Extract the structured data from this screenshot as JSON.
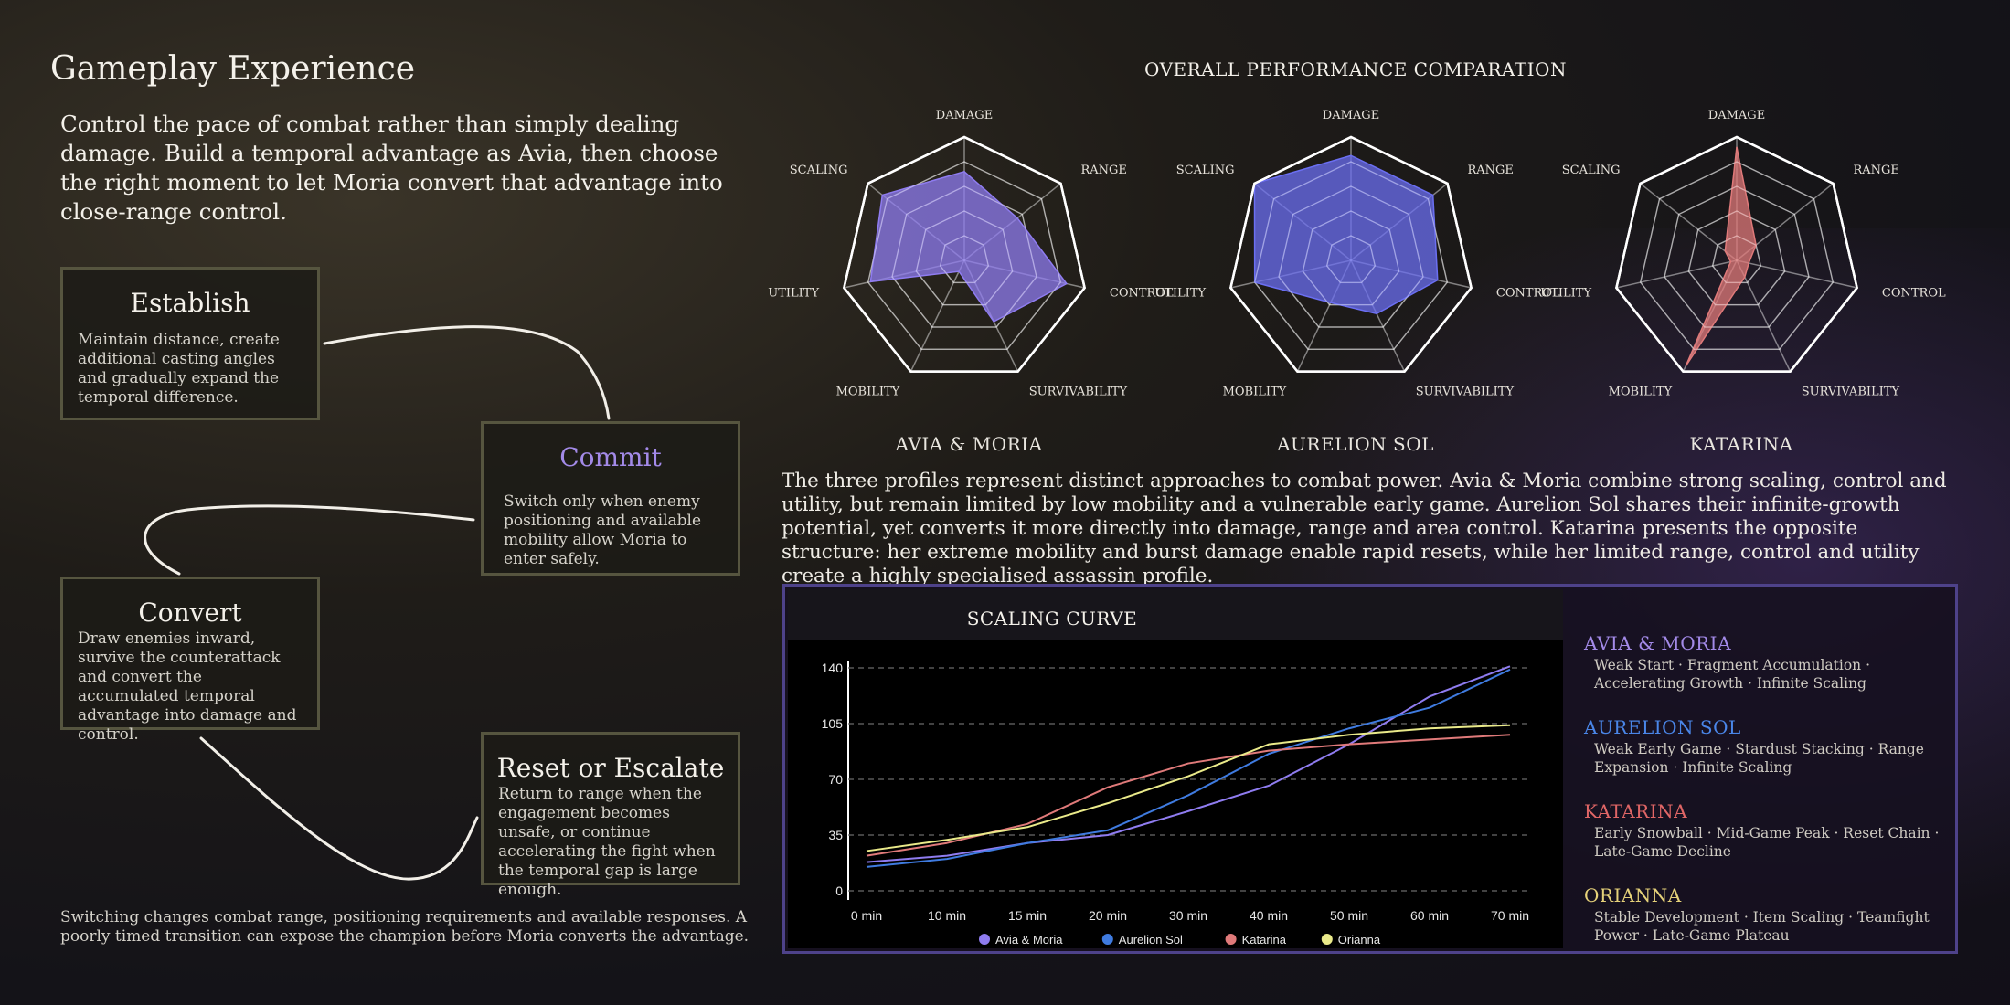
{
  "title": "Gameplay Experience",
  "intro": "Control the pace of combat rather than simply dealing damage. Build a temporal advantage as Avia, then choose the right moment to let Moria convert that advantage into close-range control.",
  "steps": [
    {
      "title": "Establish",
      "text": "Maintain distance, create additional casting angles and gradually expand the temporal difference."
    },
    {
      "title": "Commit",
      "text": "Switch only when enemy positioning and available mobility allow Moria to enter safely."
    },
    {
      "title": "Convert",
      "text": "Draw enemies inward, survive the counterattack and convert the accumulated temporal advantage into damage and control."
    },
    {
      "title": "Reset or Escalate",
      "text": "Return to range when the engagement becomes unsafe, or continue accelerating the fight when the temporal gap is large enough."
    }
  ],
  "footnote": "Switching changes combat range, positioning requirements and available responses. A poorly timed transition can expose the champion before Moria converts the advantage.",
  "performance": {
    "title": "OVERALL PERFORMANCE COMPARATION",
    "axes": [
      "DAMAGE",
      "RANGE",
      "CONTROL",
      "SURVIVABILITY",
      "MOBILITY",
      "UTILITY",
      "SCALING"
    ],
    "profiles": [
      {
        "name": "AVIA & MORIA",
        "color": "#8f7cf0",
        "values": [
          0.72,
          0.55,
          0.85,
          0.55,
          0.1,
          0.78,
          0.85
        ]
      },
      {
        "name": "AURELION SOL",
        "color": "#6b6ff2",
        "values": [
          0.85,
          0.85,
          0.72,
          0.48,
          0.38,
          0.8,
          1.0
        ]
      },
      {
        "name": "KATARINA",
        "color": "#e07a7a",
        "values": [
          0.92,
          0.2,
          0.1,
          0.15,
          0.95,
          0.05,
          0.12
        ]
      }
    ],
    "description": "The three profiles represent distinct approaches to combat power. Avia & Moria combine strong scaling, control and utility, but remain limited by low mobility and a vulnerable early game. Aurelion Sol shares their infinite-growth potential, yet converts it more directly into damage, range and area control. Katarina presents the opposite structure: her extreme mobility and burst damage enable rapid resets, while her limited range, control and utility create a highly specialised assassin profile."
  },
  "chart_data": {
    "type": "line",
    "title": "SCALING CURVE",
    "categories": [
      "0 min",
      "10 min",
      "15 min",
      "20 min",
      "30 min",
      "40 min",
      "50 min",
      "60 min",
      "70 min"
    ],
    "yticks": [
      "140",
      "105",
      "70",
      "35",
      "0"
    ],
    "ylim": [
      0,
      140
    ],
    "grid": true,
    "legend_position": "bottom",
    "series": [
      {
        "name": "Avia & Moria",
        "color": "#8f7cf0",
        "values": [
          18,
          22,
          30,
          35,
          50,
          66,
          92,
          122,
          141
        ]
      },
      {
        "name": "Aurelion Sol",
        "color": "#3f7be0",
        "values": [
          15,
          20,
          30,
          38,
          60,
          86,
          102,
          115,
          139
        ]
      },
      {
        "name": "Katarina",
        "color": "#e07a7a",
        "values": [
          22,
          30,
          42,
          65,
          80,
          88,
          92,
          95,
          98
        ]
      },
      {
        "name": "Orianna",
        "color": "#eaea8a",
        "values": [
          25,
          32,
          40,
          55,
          72,
          92,
          98,
          102,
          104
        ]
      }
    ]
  },
  "legend_details": [
    {
      "name": "AVIA & MORIA",
      "color": "#a38ae8",
      "tags": "Weak Start · Fragment Accumulation · Accelerating Growth · Infinite Scaling"
    },
    {
      "name": "AURELION SOL",
      "color": "#4a86e8",
      "tags": "Weak Early Game · Stardust Stacking · Range Expansion · Infinite Scaling"
    },
    {
      "name": "KATARINA",
      "color": "#e06666",
      "tags": "Early Snowball · Mid-Game Peak · Reset Chain · Late-Game Decline"
    },
    {
      "name": "ORIANNA",
      "color": "#e6d27a",
      "tags": "Stable Development · Item Scaling · Teamfight Power · Late-Game Plateau"
    }
  ]
}
